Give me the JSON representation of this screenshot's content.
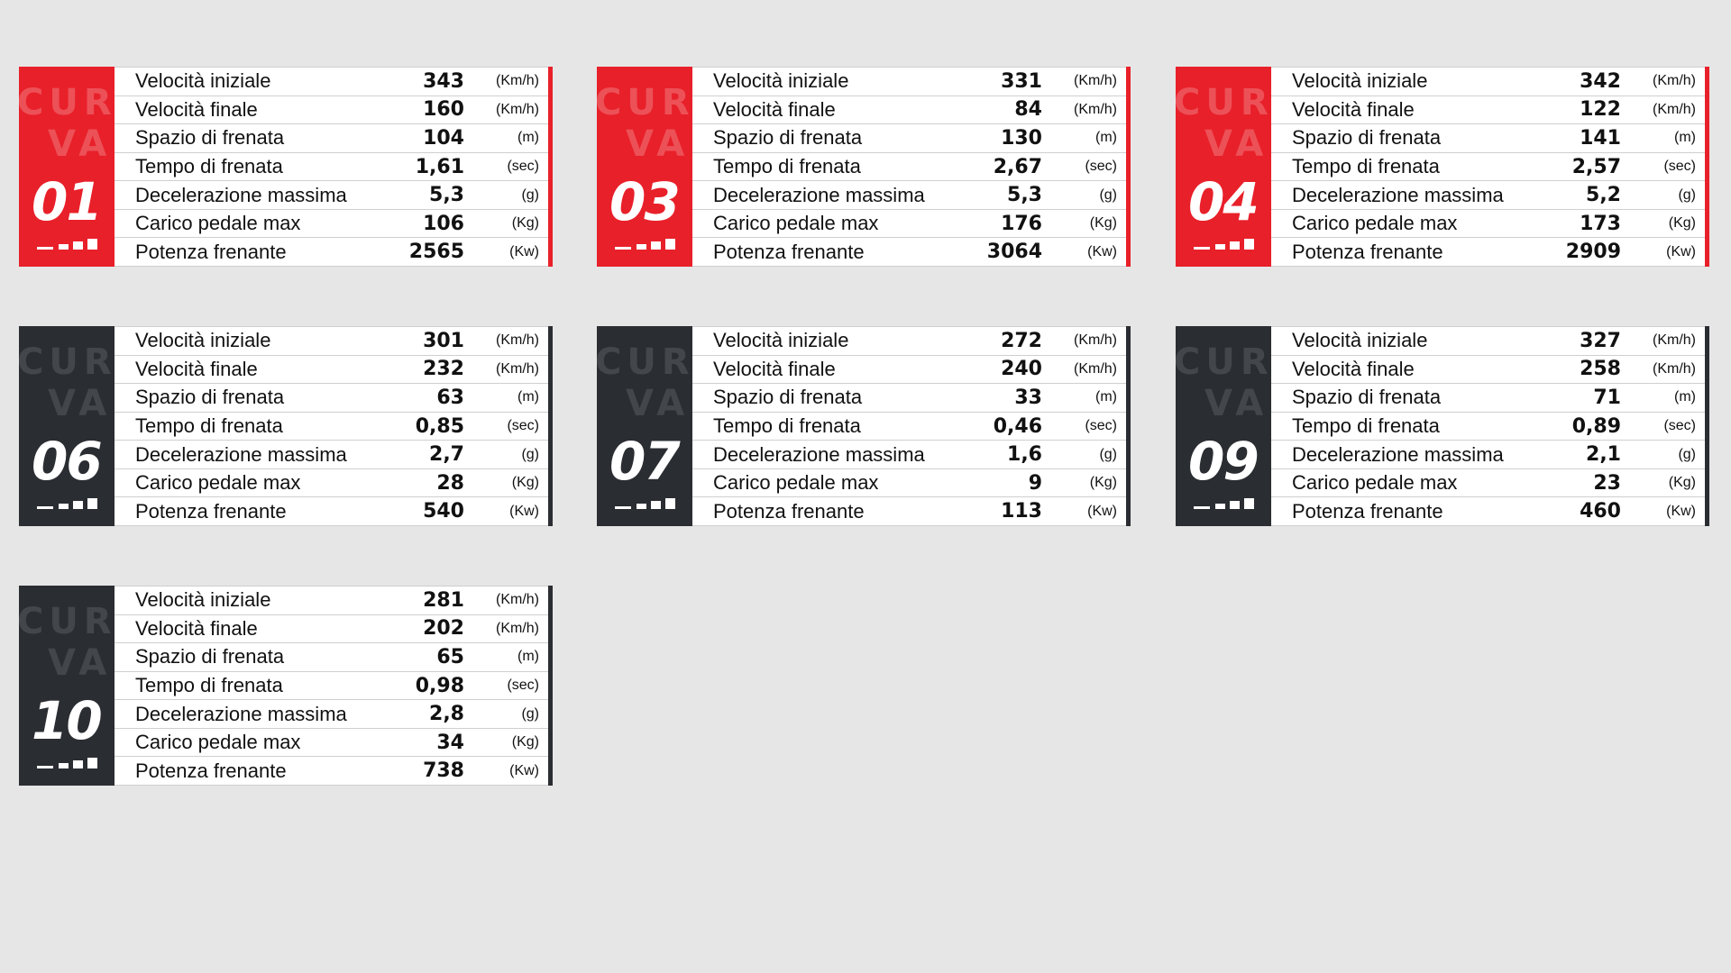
{
  "badge_word": [
    "CUR",
    "VA"
  ],
  "units": {
    "speed": "(Km/h)",
    "distance": "(m)",
    "time": "(sec)",
    "g": "(g)",
    "kg": "(Kg)",
    "kw": "(Kw)"
  },
  "colors": {
    "red": "#e8202a",
    "dark": "#2a2d31",
    "background": "#e6e6e6"
  },
  "cards": [
    {
      "number": "01",
      "theme": "red",
      "rows": [
        {
          "label": "Velocità iniziale",
          "value": "343",
          "unit": "(Km/h)"
        },
        {
          "label": "Velocità finale",
          "value": "160",
          "unit": "(Km/h)"
        },
        {
          "label": "Spazio di frenata",
          "value": "104",
          "unit": "(m)"
        },
        {
          "label": "Tempo di frenata",
          "value": "1,61",
          "unit": "(sec)"
        },
        {
          "label": "Decelerazione massima",
          "value": "5,3",
          "unit": "(g)"
        },
        {
          "label": "Carico pedale max",
          "value": "106",
          "unit": "(Kg)"
        },
        {
          "label": "Potenza frenante",
          "value": "2565",
          "unit": "(Kw)"
        }
      ]
    },
    {
      "number": "03",
      "theme": "red",
      "rows": [
        {
          "label": "Velocità iniziale",
          "value": "331",
          "unit": "(Km/h)"
        },
        {
          "label": "Velocità finale",
          "value": "84",
          "unit": "(Km/h)"
        },
        {
          "label": "Spazio di frenata",
          "value": "130",
          "unit": "(m)"
        },
        {
          "label": "Tempo di frenata",
          "value": "2,67",
          "unit": "(sec)"
        },
        {
          "label": "Decelerazione massima",
          "value": "5,3",
          "unit": "(g)"
        },
        {
          "label": "Carico pedale max",
          "value": "176",
          "unit": "(Kg)"
        },
        {
          "label": "Potenza frenante",
          "value": "3064",
          "unit": "(Kw)"
        }
      ]
    },
    {
      "number": "04",
      "theme": "red",
      "rows": [
        {
          "label": "Velocità iniziale",
          "value": "342",
          "unit": "(Km/h)"
        },
        {
          "label": "Velocità finale",
          "value": "122",
          "unit": "(Km/h)"
        },
        {
          "label": "Spazio di frenata",
          "value": "141",
          "unit": "(m)"
        },
        {
          "label": "Tempo di frenata",
          "value": "2,57",
          "unit": "(sec)"
        },
        {
          "label": "Decelerazione massima",
          "value": "5,2",
          "unit": "(g)"
        },
        {
          "label": "Carico pedale max",
          "value": "173",
          "unit": "(Kg)"
        },
        {
          "label": "Potenza frenante",
          "value": "2909",
          "unit": "(Kw)"
        }
      ]
    },
    {
      "number": "06",
      "theme": "dark",
      "rows": [
        {
          "label": "Velocità iniziale",
          "value": "301",
          "unit": "(Km/h)"
        },
        {
          "label": "Velocità finale",
          "value": "232",
          "unit": "(Km/h)"
        },
        {
          "label": "Spazio di frenata",
          "value": "63",
          "unit": "(m)"
        },
        {
          "label": "Tempo di frenata",
          "value": "0,85",
          "unit": "(sec)"
        },
        {
          "label": "Decelerazione massima",
          "value": "2,7",
          "unit": "(g)"
        },
        {
          "label": "Carico pedale max",
          "value": "28",
          "unit": "(Kg)"
        },
        {
          "label": "Potenza frenante",
          "value": "540",
          "unit": "(Kw)"
        }
      ]
    },
    {
      "number": "07",
      "theme": "dark",
      "rows": [
        {
          "label": "Velocità iniziale",
          "value": "272",
          "unit": "(Km/h)"
        },
        {
          "label": "Velocità finale",
          "value": "240",
          "unit": "(Km/h)"
        },
        {
          "label": "Spazio di frenata",
          "value": "33",
          "unit": "(m)"
        },
        {
          "label": "Tempo di frenata",
          "value": "0,46",
          "unit": "(sec)"
        },
        {
          "label": "Decelerazione massima",
          "value": "1,6",
          "unit": "(g)"
        },
        {
          "label": "Carico pedale max",
          "value": "9",
          "unit": "(Kg)"
        },
        {
          "label": "Potenza frenante",
          "value": "113",
          "unit": "(Kw)"
        }
      ]
    },
    {
      "number": "09",
      "theme": "dark",
      "rows": [
        {
          "label": "Velocità iniziale",
          "value": "327",
          "unit": "(Km/h)"
        },
        {
          "label": "Velocità finale",
          "value": "258",
          "unit": "(Km/h)"
        },
        {
          "label": "Spazio di frenata",
          "value": "71",
          "unit": "(m)"
        },
        {
          "label": "Tempo di frenata",
          "value": "0,89",
          "unit": "(sec)"
        },
        {
          "label": "Decelerazione massima",
          "value": "2,1",
          "unit": "(g)"
        },
        {
          "label": "Carico pedale max",
          "value": "23",
          "unit": "(Kg)"
        },
        {
          "label": "Potenza frenante",
          "value": "460",
          "unit": "(Kw)"
        }
      ]
    },
    {
      "number": "10",
      "theme": "dark",
      "rows": [
        {
          "label": "Velocità iniziale",
          "value": "281",
          "unit": "(Km/h)"
        },
        {
          "label": "Velocità finale",
          "value": "202",
          "unit": "(Km/h)"
        },
        {
          "label": "Spazio di frenata",
          "value": "65",
          "unit": "(m)"
        },
        {
          "label": "Tempo di frenata",
          "value": "0,98",
          "unit": "(sec)"
        },
        {
          "label": "Decelerazione massima",
          "value": "2,8",
          "unit": "(g)"
        },
        {
          "label": "Carico pedale max",
          "value": "34",
          "unit": "(Kg)"
        },
        {
          "label": "Potenza frenante",
          "value": "738",
          "unit": "(Kw)"
        }
      ]
    }
  ]
}
